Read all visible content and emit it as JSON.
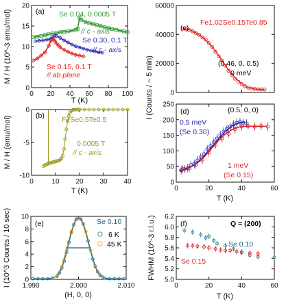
{
  "chart_data": [
    {
      "panel": "(a)",
      "type": "line",
      "xlabel": "T (K)",
      "ylabel": "M / H  (10^-3 emu/mol)",
      "xlim": [
        0,
        100
      ],
      "ylim": [
        0,
        20
      ],
      "xticks": [
        "0",
        "20",
        "40",
        "60",
        "80",
        "100"
      ],
      "yticks": [
        "0",
        "5",
        "10",
        "15",
        "20"
      ],
      "legend_placement": "in-plot labels",
      "series": [
        {
          "label": "Se 0.04, 0.0005 T",
          "sublabel": "// c - axis",
          "color": "#2e9a2e",
          "marker": "square-open",
          "x": [
            2,
            6,
            10,
            14,
            18,
            22,
            26,
            30,
            34,
            38,
            42,
            46,
            48,
            50,
            52,
            56,
            60,
            64,
            68,
            72,
            76,
            80,
            84,
            88,
            92,
            96,
            100
          ],
          "y": [
            12.3,
            12.4,
            12.6,
            12.8,
            13.0,
            13.2,
            13.3,
            13.5,
            13.6,
            13.7,
            13.9,
            14.1,
            14.3,
            17.0,
            16.5,
            16.0,
            15.7,
            15.5,
            15.2,
            15.0,
            14.7,
            14.5,
            14.3,
            14.1,
            13.9,
            13.7,
            13.5
          ]
        },
        {
          "label": "Se 0.30, 0.1 T",
          "sublabel": "// c - axis",
          "color": "#2a2ab0",
          "marker": "circle-open",
          "x": [
            4,
            8,
            12,
            16,
            20,
            22,
            24,
            26,
            30,
            34,
            38,
            42,
            46,
            50,
            54,
            58,
            62,
            66,
            70,
            74
          ],
          "y": [
            11.3,
            11.4,
            11.5,
            11.7,
            11.9,
            12.3,
            12.6,
            12.6,
            12.1,
            11.5,
            11.0,
            10.5,
            10.1,
            9.8,
            9.5,
            9.2,
            9.0,
            8.8,
            8.6,
            8.5
          ]
        },
        {
          "label": "Se 0.15, 0.1 T",
          "sublabel": "// ab plane",
          "color": "#e02020",
          "marker": "diamond-open",
          "x": [
            2,
            6,
            10,
            14,
            18,
            20,
            22,
            24,
            26,
            28,
            30,
            34,
            38,
            42,
            46,
            50,
            54
          ],
          "y": [
            6.6,
            7.1,
            7.8,
            8.6,
            10.2,
            11.4,
            11.8,
            11.5,
            10.8,
            10.3,
            9.8,
            9.2,
            8.7,
            8.3,
            8.0,
            7.8,
            7.6
          ]
        }
      ]
    },
    {
      "panel": "(b)",
      "type": "line",
      "xlabel": "T (K)",
      "ylabel": "M / H  (emu/mol)",
      "xlim": [
        0,
        40
      ],
      "ylim": [
        -10,
        0
      ],
      "xticks": [
        "0",
        "10",
        "20",
        "30",
        "40"
      ],
      "yticks": [
        "-10",
        "-5",
        "0"
      ],
      "annotation": "FeSe0.5Te0.5",
      "series": [
        {
          "label": "0.0005 T",
          "sublabel": "// c - axis",
          "color": "#9a9a22",
          "marker": "circle-open",
          "x": [
            5,
            5.5,
            6,
            6.5,
            7,
            7.5,
            8,
            8.5,
            9,
            9.5,
            10,
            10.5,
            11,
            11.5,
            12,
            12.5,
            13,
            13.5,
            14,
            14.5,
            15,
            15.5,
            16,
            16.5,
            17,
            17.5,
            18,
            18.5,
            19,
            19.5,
            20,
            22,
            24,
            26,
            28,
            30,
            32,
            34,
            36,
            38,
            40
          ],
          "y": [
            -8.6,
            -8.5,
            -8.4,
            -8.3,
            -8.2,
            -8.15,
            -8.1,
            -8.05,
            -8.0,
            -7.95,
            -7.9,
            -7.85,
            -7.8,
            -7.75,
            -7.6,
            -7.4,
            -7.0,
            -6.0,
            -4.5,
            -3.0,
            -1.8,
            -1.0,
            -0.5,
            -0.2,
            -0.08,
            -0.02,
            0,
            0,
            0,
            0,
            0,
            0,
            0,
            0,
            0,
            0,
            0,
            0,
            0,
            0,
            0
          ]
        }
      ]
    },
    {
      "panel": "(c)",
      "type": "scatter",
      "title": "Fe1.02Se0.15Te0.85",
      "xlabel": "",
      "ylabel": "I (Counts / ~ 5 min)",
      "xlim": [
        0,
        60
      ],
      "ylim": [
        0,
        60000
      ],
      "xticks": [],
      "yticks": [
        "0",
        "20000",
        "40000",
        "60000"
      ],
      "annotations": [
        "(0.46, 0, 0.5)",
        "0 meV"
      ],
      "series": [
        {
          "name": "data",
          "color": "#e02020",
          "marker": "circle-open",
          "x": [
            4,
            6,
            8,
            10,
            12,
            14,
            16,
            18,
            20,
            22,
            24,
            26,
            28,
            30,
            32,
            34,
            36,
            38,
            40,
            42,
            44,
            46,
            48,
            50,
            52,
            54
          ],
          "y": [
            44000,
            43500,
            43000,
            42200,
            41000,
            39800,
            38000,
            36500,
            34000,
            31500,
            28000,
            25000,
            22000,
            18500,
            15000,
            12000,
            9500,
            7400,
            5700,
            4300,
            3300,
            2700,
            2400,
            2200,
            2100,
            2050
          ]
        },
        {
          "name": "fit",
          "color": "#e02020",
          "marker": "line",
          "x": [
            4,
            8,
            12,
            16,
            20,
            24,
            28,
            32,
            36,
            40,
            44,
            48,
            52,
            54
          ],
          "y": [
            44200,
            43200,
            41200,
            38200,
            34000,
            28500,
            22000,
            15500,
            10000,
            6000,
            3400,
            2400,
            2100,
            2050
          ]
        }
      ]
    },
    {
      "panel": "(d)",
      "type": "scatter",
      "xlabel": "T (K)",
      "ylabel": "I (Counts / ~ 5 min)",
      "xlim": [
        0,
        60
      ],
      "ylim": [
        0,
        250
      ],
      "xticks": [
        "0",
        "20",
        "40",
        "60"
      ],
      "yticks": [
        "0",
        "50",
        "100",
        "150",
        "200",
        "250"
      ],
      "annotation": "(0.5, 0, 0)",
      "series": [
        {
          "label": "0.5 meV",
          "sublabel": "(Se 0.30)",
          "color": "#2a2ab0",
          "marker": "circle-open",
          "x": [
            3,
            5,
            7,
            9,
            11,
            13,
            15,
            17,
            19,
            21,
            23,
            25,
            27,
            29,
            31,
            33,
            35,
            37,
            39,
            41,
            43
          ],
          "y": [
            38,
            42,
            45,
            55,
            58,
            70,
            80,
            90,
            105,
            115,
            128,
            140,
            150,
            162,
            170,
            178,
            185,
            190,
            193,
            190,
            188
          ]
        },
        {
          "label": "1 meV",
          "sublabel": "(Se 0.15)",
          "color": "#e02020",
          "marker": "circle-open",
          "x": [
            4,
            8,
            12,
            16,
            20,
            24,
            28,
            32,
            36,
            40,
            44,
            48,
            52,
            56
          ],
          "y": [
            42,
            45,
            55,
            72,
            95,
            120,
            140,
            155,
            170,
            178,
            180,
            178,
            180,
            178
          ]
        },
        {
          "name": "fit blue",
          "color": "#2a2ab0",
          "marker": "line",
          "x": [
            2,
            6,
            10,
            14,
            18,
            22,
            26,
            30,
            34,
            38,
            42
          ],
          "y": [
            35,
            42,
            52,
            68,
            90,
            115,
            140,
            162,
            180,
            190,
            192
          ]
        },
        {
          "name": "fit red",
          "color": "#e02020",
          "marker": "line",
          "x": [
            2,
            6,
            10,
            14,
            18,
            22,
            26,
            30,
            34,
            38,
            42,
            46,
            50,
            55
          ],
          "y": [
            38,
            43,
            52,
            66,
            86,
            110,
            134,
            154,
            168,
            176,
            179,
            179,
            179,
            179
          ]
        }
      ]
    },
    {
      "panel": "(e)",
      "type": "line",
      "xlabel": "(H, 0, 0)",
      "ylabel": "I (10^3 Counts / 10 sec)",
      "xlim": [
        1.99,
        2.01
      ],
      "ylim": [
        0,
        10
      ],
      "xticks": [
        "1.990",
        "2.000",
        "2.010"
      ],
      "yticks": [
        "0",
        "2",
        "4",
        "6",
        "8",
        "10"
      ],
      "annotation": "Se 0.10",
      "series": [
        {
          "label": "6 K",
          "color": "#2e7d9a",
          "marker": "circle-open",
          "x": [
            1.9905,
            1.9915,
            1.9925,
            1.9935,
            1.9945,
            1.9955,
            1.996,
            1.9965,
            1.997,
            1.9975,
            1.998,
            1.9985,
            1.999,
            1.9995,
            2.0,
            2.0005,
            2.001,
            2.0015,
            2.002,
            2.0025,
            2.003,
            2.0035,
            2.004,
            2.0045,
            2.005,
            2.0055,
            2.0065,
            2.0075,
            2.0085,
            2.0095
          ],
          "y": [
            0.1,
            0.1,
            0.1,
            0.1,
            0.2,
            0.5,
            1.0,
            1.8,
            2.9,
            4.3,
            5.9,
            7.4,
            8.7,
            9.5,
            9.8,
            9.5,
            8.8,
            7.6,
            6.1,
            4.6,
            3.2,
            2.1,
            1.2,
            0.7,
            0.4,
            0.2,
            0.1,
            0.1,
            0.1,
            0.1
          ]
        },
        {
          "label": "45 K",
          "color": "#f0a020",
          "marker": "circle-open",
          "x": [
            1.9955,
            1.9965,
            1.9975,
            1.9985,
            1.9995,
            2.0005,
            2.0015,
            2.0025,
            2.0035,
            2.0045
          ],
          "y": [
            0.6,
            2.0,
            4.6,
            7.6,
            9.6,
            9.6,
            7.6,
            4.6,
            2.0,
            0.6
          ]
        }
      ],
      "fwhm_bar": {
        "x": [
          1.9974,
          2.0026
        ],
        "y": 5.0
      }
    },
    {
      "panel": "(f)",
      "type": "scatter",
      "xlabel": "T (K)",
      "ylabel": "FWHM (10^-3 r.l.u.)",
      "xlim": [
        0,
        60
      ],
      "ylim": [
        5.0,
        6.2
      ],
      "xticks": [
        "0",
        "20",
        "40",
        "60"
      ],
      "yticks": [
        "5.0",
        "5.2",
        "5.4",
        "5.6",
        "5.8",
        "6.0",
        "6.2"
      ],
      "annotation": "Q = (200)",
      "series": [
        {
          "label": "Se 0.10",
          "color": "#2e7d9a",
          "marker": "circle-open",
          "x": [
            5,
            10,
            15,
            18,
            20,
            23,
            25,
            30,
            35,
            40,
            45,
            50,
            60
          ],
          "y": [
            5.93,
            5.9,
            5.85,
            5.79,
            5.82,
            5.74,
            5.68,
            5.64,
            5.58,
            5.52,
            5.46,
            5.43,
            5.42
          ]
        },
        {
          "label": "Se 0.15",
          "color": "#e02020",
          "marker": "circle-open",
          "x": [
            7,
            10,
            13,
            17,
            20,
            24,
            27,
            30,
            33,
            37,
            40,
            45,
            50
          ],
          "y": [
            5.64,
            5.64,
            5.63,
            5.62,
            5.6,
            5.58,
            5.56,
            5.55,
            5.55,
            5.53,
            5.51,
            5.5,
            5.49
          ]
        }
      ]
    }
  ]
}
